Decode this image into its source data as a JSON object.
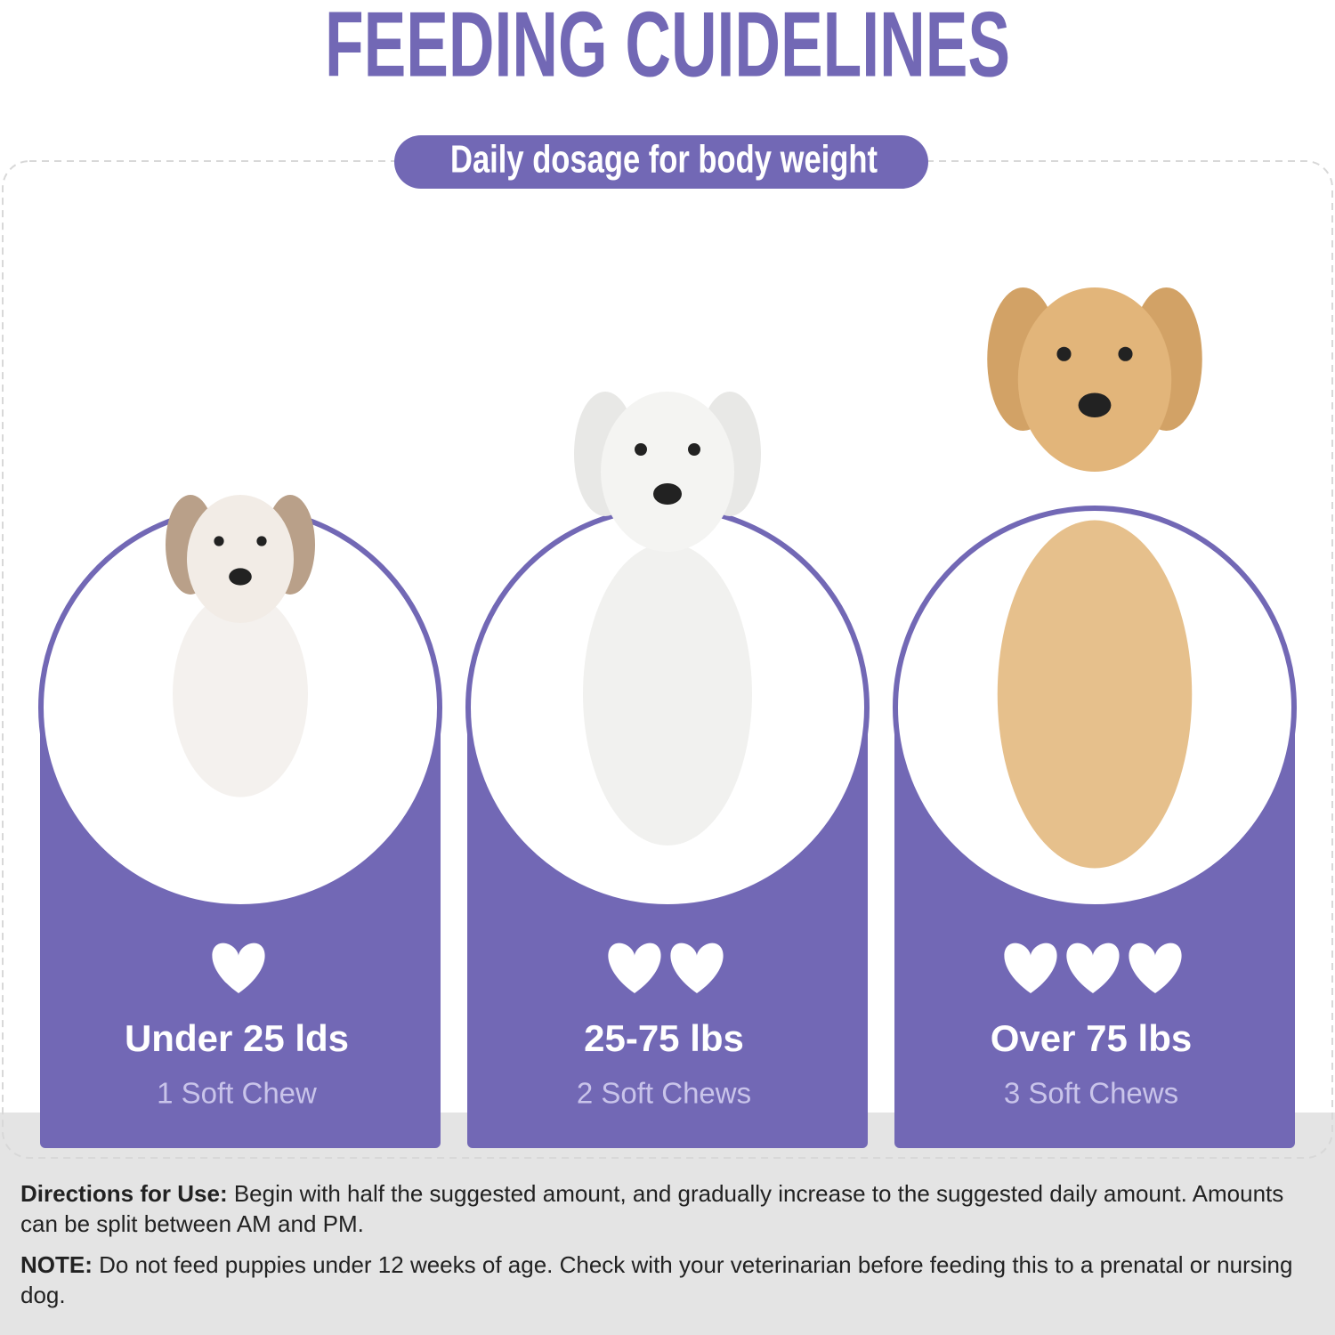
{
  "header": {
    "title": "FEEDING CUIDELINES",
    "subtitle": "Daily dosage for body weight"
  },
  "cards": [
    {
      "weight": "Under 25 lds",
      "dosage": "1 Soft Chew"
    },
    {
      "weight": "25-75 lbs",
      "dosage": "2 Soft Chews"
    },
    {
      "weight": "Over 75 lbs",
      "dosage": "3 Soft Chews"
    }
  ],
  "directions": {
    "label": "Directions for Use:",
    "text": "Begin with half the suggested amount, and gradually increase to the suggested daily amount. Amounts can be split between AM and PM."
  },
  "note": {
    "label": "NOTE:",
    "text": "Do not feed puppies under 12 weeks of age. Check with your veterinarian before feeding this to a prenatal or nursing dog."
  }
}
